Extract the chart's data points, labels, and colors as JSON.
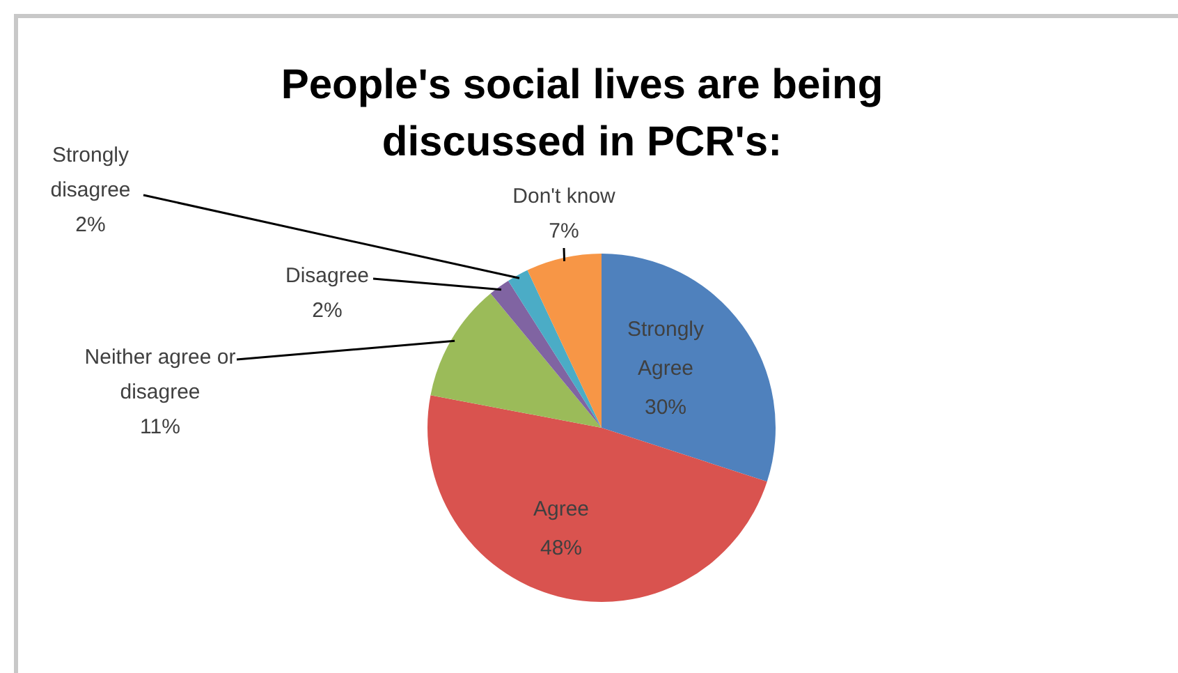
{
  "chart_data": {
    "type": "pie",
    "title": "People's social lives are being discussed in PCR's:",
    "categories": [
      "Strongly Agree",
      "Agree",
      "Neither agree or disagree",
      "Disagree",
      "Strongly disagree",
      "Don't know"
    ],
    "values": [
      30,
      48,
      11,
      2,
      2,
      7
    ],
    "value_labels": [
      "30%",
      "48%",
      "11%",
      "2%",
      "2%",
      "7%"
    ],
    "colors": [
      "#4f81bd",
      "#d9534f",
      "#9bbb59",
      "#8064a2",
      "#4bacc6",
      "#f79646"
    ],
    "legend": false
  }
}
